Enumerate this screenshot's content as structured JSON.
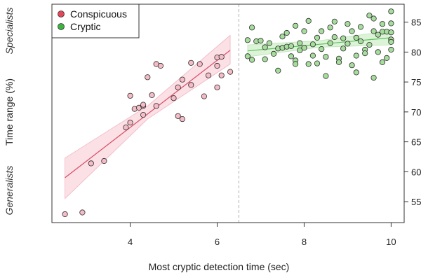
{
  "chart_data": {
    "type": "scatter",
    "xlabel": "Most cryptic detection time (sec)",
    "ylabel": "Time range (%)",
    "xlim": [
      2.2,
      10.3
    ],
    "ylim": [
      51.5,
      88
    ],
    "x_ticks": [
      4,
      6,
      8,
      10
    ],
    "y_ticks": [
      55,
      60,
      65,
      70,
      75,
      80,
      85
    ],
    "divider_x": 6.5,
    "side_labels": {
      "top": "Specialists",
      "bottom": "Generalists"
    },
    "legend": {
      "position": "top-left"
    },
    "series": [
      {
        "name": "Conspicuous",
        "marker_color": "#e2475a",
        "fill_color": "#f5bcc7",
        "line_color": "#d94a60",
        "band_color": "#f9d3db",
        "fit": {
          "x": [
            2.5,
            6.3
          ],
          "y": [
            59.0,
            80.3
          ]
        },
        "band": {
          "x": [
            2.5,
            4.4,
            6.3
          ],
          "lower": [
            55.5,
            68.8,
            78.0
          ],
          "upper": [
            62.3,
            71.0,
            82.8
          ]
        },
        "points": [
          {
            "x": 2.5,
            "y": 52.9
          },
          {
            "x": 2.9,
            "y": 53.2
          },
          {
            "x": 3.1,
            "y": 61.4
          },
          {
            "x": 3.4,
            "y": 61.8
          },
          {
            "x": 3.9,
            "y": 67.4
          },
          {
            "x": 4.0,
            "y": 72.7
          },
          {
            "x": 4.0,
            "y": 68.2
          },
          {
            "x": 4.1,
            "y": 70.5
          },
          {
            "x": 4.2,
            "y": 70.7
          },
          {
            "x": 4.3,
            "y": 71.0
          },
          {
            "x": 4.3,
            "y": 69.5
          },
          {
            "x": 4.3,
            "y": 71.2
          },
          {
            "x": 4.4,
            "y": 75.8
          },
          {
            "x": 4.5,
            "y": 72.8
          },
          {
            "x": 4.6,
            "y": 78.0
          },
          {
            "x": 4.6,
            "y": 71.0
          },
          {
            "x": 4.7,
            "y": 77.7
          },
          {
            "x": 5.0,
            "y": 72.3
          },
          {
            "x": 5.1,
            "y": 74.1
          },
          {
            "x": 5.1,
            "y": 69.3
          },
          {
            "x": 5.2,
            "y": 75.4
          },
          {
            "x": 5.2,
            "y": 68.8
          },
          {
            "x": 5.4,
            "y": 74.5
          },
          {
            "x": 5.4,
            "y": 78.2
          },
          {
            "x": 5.6,
            "y": 78.0
          },
          {
            "x": 5.7,
            "y": 72.6
          },
          {
            "x": 5.8,
            "y": 76.1
          },
          {
            "x": 6.0,
            "y": 77.7
          },
          {
            "x": 6.0,
            "y": 79.1
          },
          {
            "x": 6.0,
            "y": 74.1
          },
          {
            "x": 6.1,
            "y": 79.2
          },
          {
            "x": 6.1,
            "y": 76.1
          },
          {
            "x": 6.3,
            "y": 76.7
          }
        ]
      },
      {
        "name": "Cryptic",
        "marker_color": "#3db43d",
        "fill_color": "#a6dd9c",
        "line_color": "#5cc45c",
        "band_color": "#cdeec6",
        "fit": {
          "x": [
            6.7,
            10.0
          ],
          "y": [
            80.2,
            82.4
          ]
        },
        "band": {
          "x": [
            6.7,
            8.35,
            10.0
          ],
          "lower": [
            79.2,
            80.8,
            81.2
          ],
          "upper": [
            81.2,
            81.9,
            83.6
          ]
        },
        "points": [
          {
            "x": 6.7,
            "y": 79.3
          },
          {
            "x": 6.7,
            "y": 82.0
          },
          {
            "x": 6.8,
            "y": 84.1
          },
          {
            "x": 6.8,
            "y": 78.7
          },
          {
            "x": 6.9,
            "y": 81.8
          },
          {
            "x": 7.0,
            "y": 81.9
          },
          {
            "x": 7.1,
            "y": 80.8
          },
          {
            "x": 7.1,
            "y": 78.8
          },
          {
            "x": 7.2,
            "y": 81.5
          },
          {
            "x": 7.3,
            "y": 79.7
          },
          {
            "x": 7.4,
            "y": 76.9
          },
          {
            "x": 7.4,
            "y": 80.6
          },
          {
            "x": 7.5,
            "y": 80.7
          },
          {
            "x": 7.5,
            "y": 82.6
          },
          {
            "x": 7.6,
            "y": 83.2
          },
          {
            "x": 7.6,
            "y": 80.9
          },
          {
            "x": 7.7,
            "y": 79.3
          },
          {
            "x": 7.7,
            "y": 81.0
          },
          {
            "x": 7.8,
            "y": 84.4
          },
          {
            "x": 7.8,
            "y": 78.6
          },
          {
            "x": 7.8,
            "y": 78.0
          },
          {
            "x": 7.9,
            "y": 80.3
          },
          {
            "x": 7.9,
            "y": 81.5
          },
          {
            "x": 8.0,
            "y": 83.5
          },
          {
            "x": 8.0,
            "y": 80.7
          },
          {
            "x": 8.1,
            "y": 85.2
          },
          {
            "x": 8.1,
            "y": 78.0
          },
          {
            "x": 8.2,
            "y": 79.4
          },
          {
            "x": 8.2,
            "y": 81.3
          },
          {
            "x": 8.3,
            "y": 82.4
          },
          {
            "x": 8.3,
            "y": 78.1
          },
          {
            "x": 8.4,
            "y": 83.5
          },
          {
            "x": 8.4,
            "y": 80.5
          },
          {
            "x": 8.5,
            "y": 79.2
          },
          {
            "x": 8.5,
            "y": 76.0
          },
          {
            "x": 8.6,
            "y": 84.1
          },
          {
            "x": 8.6,
            "y": 81.5
          },
          {
            "x": 8.7,
            "y": 85.1
          },
          {
            "x": 8.7,
            "y": 82.5
          },
          {
            "x": 8.8,
            "y": 78.9
          },
          {
            "x": 8.8,
            "y": 78.3
          },
          {
            "x": 8.9,
            "y": 82.3
          },
          {
            "x": 8.9,
            "y": 80.6
          },
          {
            "x": 9.0,
            "y": 84.7
          },
          {
            "x": 9.0,
            "y": 81.4
          },
          {
            "x": 9.1,
            "y": 83.5
          },
          {
            "x": 9.1,
            "y": 77.8
          },
          {
            "x": 9.2,
            "y": 82.4
          },
          {
            "x": 9.2,
            "y": 79.4
          },
          {
            "x": 9.2,
            "y": 76.6
          },
          {
            "x": 9.3,
            "y": 81.8
          },
          {
            "x": 9.3,
            "y": 84.2
          },
          {
            "x": 9.4,
            "y": 80.4
          },
          {
            "x": 9.4,
            "y": 79.8
          },
          {
            "x": 9.5,
            "y": 86.1
          },
          {
            "x": 9.5,
            "y": 81.2
          },
          {
            "x": 9.6,
            "y": 85.6
          },
          {
            "x": 9.6,
            "y": 75.7
          },
          {
            "x": 9.6,
            "y": 83.5
          },
          {
            "x": 9.7,
            "y": 82.9
          },
          {
            "x": 9.7,
            "y": 80.0
          },
          {
            "x": 9.8,
            "y": 78.3
          },
          {
            "x": 9.8,
            "y": 84.7
          },
          {
            "x": 9.8,
            "y": 83.4
          },
          {
            "x": 9.9,
            "y": 79.0
          },
          {
            "x": 9.9,
            "y": 83.4
          },
          {
            "x": 10.0,
            "y": 82.1
          },
          {
            "x": 10.0,
            "y": 81.7
          },
          {
            "x": 10.0,
            "y": 84.8
          },
          {
            "x": 10.0,
            "y": 86.8
          },
          {
            "x": 10.0,
            "y": 80.4
          },
          {
            "x": 10.0,
            "y": 83.3
          }
        ]
      }
    ]
  }
}
